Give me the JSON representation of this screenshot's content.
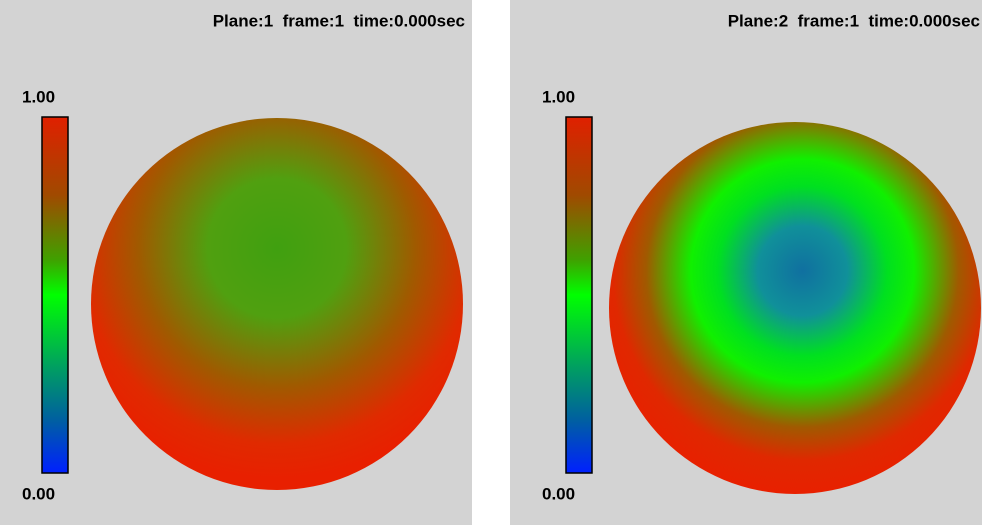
{
  "panels": [
    {
      "title": "Plane:1  frame:1  time:0.000sec",
      "scale_max": "1.00",
      "scale_min": "0.00"
    },
    {
      "title": "Plane:2  frame:1  time:0.000sec",
      "scale_max": "1.00",
      "scale_min": "0.00"
    }
  ]
}
